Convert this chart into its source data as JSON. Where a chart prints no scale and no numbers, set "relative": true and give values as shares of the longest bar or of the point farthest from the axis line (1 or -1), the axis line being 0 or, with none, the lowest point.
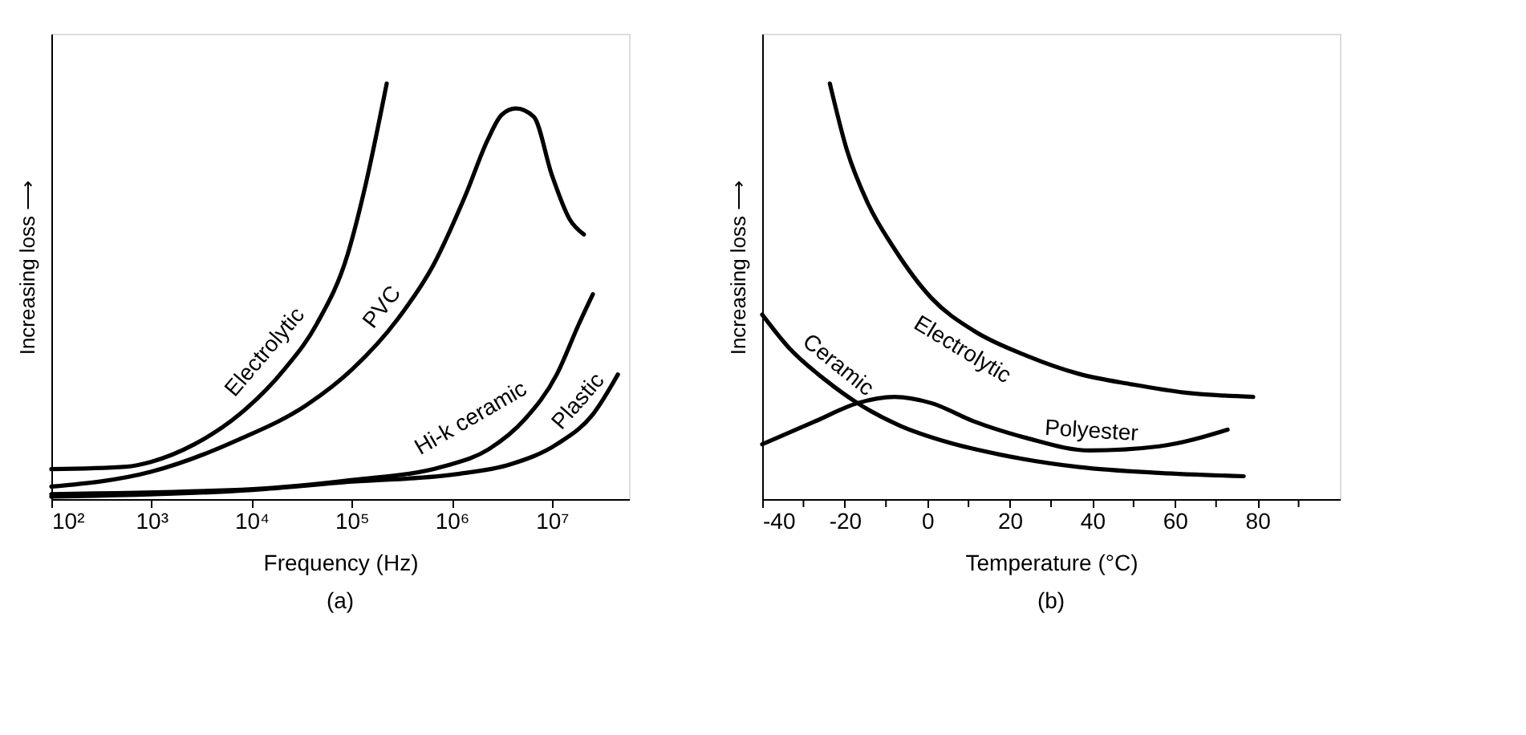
{
  "chart_data": [
    {
      "type": "line",
      "relative": true,
      "log": "x",
      "xlabel": "Frequency (Hz)",
      "ylabel": "Increasing loss ⟶",
      "annotations": [
        "(a)"
      ],
      "grid": false,
      "tick_labels": "x",
      "xlim": [
        100,
        59000000
      ],
      "xticks": [
        {
          "value": 100,
          "label": "10²"
        },
        {
          "value": 1000,
          "label": "10³"
        },
        {
          "value": 10000,
          "label": "10⁴"
        },
        {
          "value": 100000,
          "label": "10⁵"
        },
        {
          "value": 1000000,
          "label": "10⁶"
        },
        {
          "value": 10000000,
          "label": "10⁷"
        }
      ],
      "series": [
        {
          "name": "Electrolytic",
          "color": "#000000",
          "x": [
            100,
            562,
            1000,
            2690,
            7590,
            21400,
            44700,
            91200,
            138000,
            224000
          ],
          "values": [
            0.072,
            0.078,
            0.09,
            0.132,
            0.204,
            0.313,
            0.421,
            0.589,
            0.757,
            1.0
          ]
        },
        {
          "name": "PVC",
          "color": "#000000",
          "x": [
            100,
            1000,
            7590,
            36300,
            102000,
            288000,
            661000,
            1380000,
            2290000,
            3160000,
            4370000,
            6610000,
            10000000,
            15100000,
            20900000
          ],
          "values": [
            0.03,
            0.066,
            0.144,
            0.228,
            0.313,
            0.433,
            0.565,
            0.733,
            0.865,
            0.925,
            0.94,
            0.92,
            0.78,
            0.673,
            0.637
          ]
        },
        {
          "name": "Hi-k ceramic",
          "color": "#000000",
          "x": [
            100,
            10200,
            102000,
            813000,
            2340000,
            5370000,
            11200000,
            18600000,
            25700000
          ],
          "values": [
            0.012,
            0.024,
            0.046,
            0.078,
            0.12,
            0.192,
            0.3,
            0.421,
            0.493
          ]
        },
        {
          "name": "Plastic",
          "color": "#000000",
          "x": [
            100,
            10200,
            102000,
            1120000,
            3890000,
            11200000,
            25700000,
            45700000
          ],
          "values": [
            0.006,
            0.022,
            0.042,
            0.06,
            0.084,
            0.132,
            0.204,
            0.3
          ]
        }
      ]
    },
    {
      "type": "line",
      "relative": true,
      "xlabel": "Temperature (°C)",
      "ylabel": "Increasing loss ⟶",
      "annotations": [
        "(b)"
      ],
      "grid": false,
      "tick_labels": "x",
      "xlim": [
        -40,
        100
      ],
      "xticks": [
        -40,
        {
          "value": -30,
          "label": null
        },
        -20,
        {
          "value": -10,
          "label": null
        },
        0,
        {
          "value": 10,
          "label": null
        },
        20,
        {
          "value": 30,
          "label": null
        },
        40,
        {
          "value": 50,
          "label": null
        },
        60,
        {
          "value": 70,
          "label": null
        },
        80,
        {
          "value": 90,
          "label": null
        }
      ],
      "series": [
        {
          "name": "Electrolytic",
          "color": "#000000",
          "x": [
            -23.6,
            -19.5,
            -14.4,
            -8,
            1,
            11.3,
            24.1,
            36.9,
            49.7,
            62.6,
            79
          ],
          "values": [
            1.0,
            0.841,
            0.712,
            0.603,
            0.484,
            0.405,
            0.345,
            0.301,
            0.276,
            0.256,
            0.246
          ]
        },
        {
          "name": "Ceramic",
          "color": "#000000",
          "x": [
            -40,
            -33.6,
            -24.6,
            -16.9,
            -6.7,
            4.9,
            17.7,
            36.9,
            56.2,
            76.7
          ],
          "values": [
            0.444,
            0.365,
            0.286,
            0.231,
            0.177,
            0.137,
            0.107,
            0.077,
            0.063,
            0.055
          ]
        },
        {
          "name": "Polyester",
          "color": "#000000",
          "x": [
            -40,
            -27.2,
            -16.9,
            -8,
            1,
            11.3,
            24.1,
            39.5,
            56.2,
            72.8
          ],
          "values": [
            0.132,
            0.187,
            0.231,
            0.246,
            0.231,
            0.187,
            0.147,
            0.117,
            0.127,
            0.167
          ]
        }
      ]
    }
  ]
}
